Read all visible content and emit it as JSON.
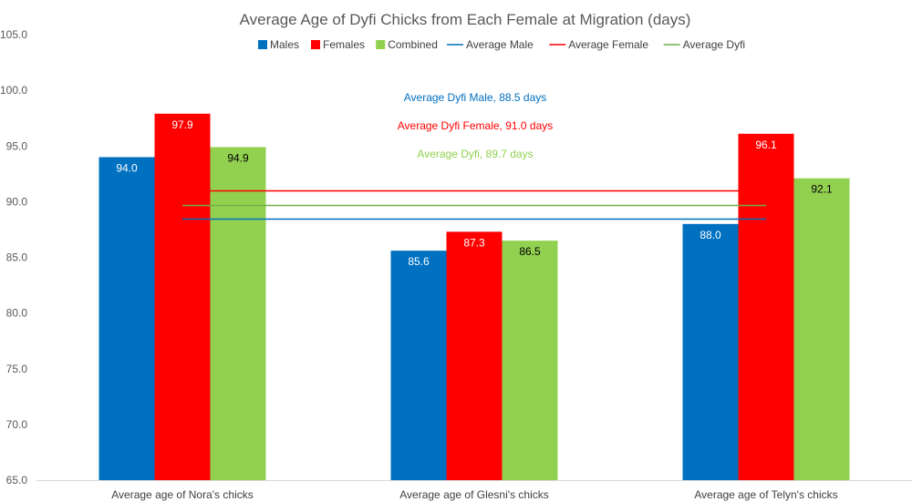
{
  "chart_data": {
    "type": "bar",
    "title": "Average Age of Dyfi Chicks from Each Female at Migration (days)",
    "categories": [
      "Average age of Nora's chicks",
      "Average age of Glesni's chicks",
      "Average age of Telyn's chicks"
    ],
    "series": [
      {
        "name": "Males",
        "color": "#0070C0",
        "values": [
          94.0,
          85.6,
          88.0
        ],
        "labels": [
          "94.0",
          "85.6",
          "88.0"
        ],
        "label_color": "#ffffff"
      },
      {
        "name": "Females",
        "color": "#FF0000",
        "values": [
          97.9,
          87.3,
          96.1
        ],
        "labels": [
          "97.9",
          "87.3",
          "96.1"
        ],
        "label_color": "#ffffff"
      },
      {
        "name": "Combined",
        "color": "#92D050",
        "values": [
          94.9,
          86.5,
          92.1
        ],
        "labels": [
          "94.9",
          "86.5",
          "92.1"
        ],
        "label_color": "#000000"
      }
    ],
    "lines": [
      {
        "name": "Average Male",
        "color": "#0070C0",
        "value": 88.5
      },
      {
        "name": "Average Female",
        "color": "#FF0000",
        "value": 91.0
      },
      {
        "name": "Average Dyfi",
        "color": "#70AD47",
        "value": 89.7
      }
    ],
    "annotations": [
      {
        "text": "Average Dyfi Male, 88.5 days",
        "color": "#0070C0"
      },
      {
        "text": "Average Dyfi Female, 91.0 days",
        "color": "#FF0000"
      },
      {
        "text": "Average Dyfi, 89.7 days",
        "color": "#92D050"
      }
    ],
    "ylim": [
      65.0,
      105.0
    ],
    "yticks": [
      "65.0",
      "70.0",
      "75.0",
      "80.0",
      "85.0",
      "90.0",
      "95.0",
      "100.0",
      "105.0"
    ],
    "ytick_values": [
      65,
      70,
      75,
      80,
      85,
      90,
      95,
      100,
      105
    ],
    "legend_position": "top",
    "grid": false
  }
}
